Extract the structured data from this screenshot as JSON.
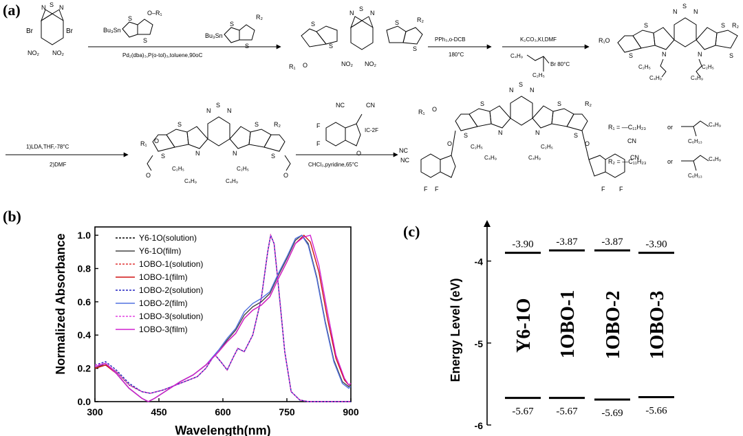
{
  "panels": {
    "a": "(a)",
    "b": "(b)",
    "c": "(c)"
  },
  "scheme": {
    "start": {
      "br_left": "Br",
      "br_right": "Br",
      "no2_left": "NO₂",
      "no2_right": "NO₂"
    },
    "reagent1": {
      "bu3sn": "Bu₃Sn",
      "o_r1": "O–R₁"
    },
    "reagent2": {
      "bu3sn": "Bu₃Sn",
      "r2": "R₂"
    },
    "step1": "Pd₂(dba)₃,P(o-tol)₃,toluene,90oC",
    "step2_top": "PPh₃,o-DCB",
    "step2_bottom": "180°C",
    "step3_top": "K₂CO₃,KI,DMF",
    "step3_alkyl": "C₄H₉",
    "step3_br": "Br 80°C",
    "step3_alkyl2": "C₂H₅",
    "step4_top": "1)LDA,THF,-78°C",
    "step4_bottom": "2)DMF",
    "step5_ic": "IC-2F",
    "step5_bottom": "CHCl₃,pyridine,65°C",
    "atoms": {
      "S": "S",
      "N": "N",
      "O": "O",
      "F": "F",
      "CN": "CN",
      "NC": "NC",
      "R1": "R₁",
      "R2": "R₂",
      "R1O": "R₁O",
      "C2H5": "C₂H₅",
      "C4H9": "C₄H₉",
      "NO2": "NO₂"
    },
    "r1_def": {
      "lhs": "R₁ = —C₁₁H₂₃",
      "or": "or",
      "c4h9": "C₄H₉",
      "c6h13": "C₆H₁₃"
    },
    "r2_def": {
      "lhs": "R₂ = —C₁₁H₂₃",
      "or": "or",
      "c4h9": "C₄H₉",
      "c6h13": "C₆H₁₃"
    }
  },
  "chart_data": [
    {
      "type": "line",
      "xlabel": "Wavelength(nm)",
      "ylabel": "Normalized Absorbance",
      "xlim": [
        300,
        900
      ],
      "ylim": [
        0,
        1.05
      ],
      "xticks": [
        300,
        450,
        600,
        750,
        900
      ],
      "yticks": [
        0.0,
        0.2,
        0.4,
        0.6,
        0.8,
        1.0
      ],
      "legend_position": "top-left",
      "series": [
        {
          "name": "Y6-1O(solution)",
          "color": "#000000",
          "dash": true,
          "x": [
            300,
            325,
            350,
            380,
            410,
            430,
            460,
            500,
            540,
            560,
            575,
            582,
            595,
            610,
            625,
            635,
            650,
            670,
            690,
            705,
            712,
            720,
            730,
            745,
            760,
            780,
            800,
            900
          ],
          "y": [
            0.2,
            0.22,
            0.18,
            0.1,
            0.06,
            0.05,
            0.07,
            0.11,
            0.15,
            0.2,
            0.26,
            0.28,
            0.24,
            0.19,
            0.27,
            0.32,
            0.3,
            0.4,
            0.62,
            0.9,
            1.0,
            0.95,
            0.7,
            0.3,
            0.06,
            0.01,
            0.0,
            0.0
          ]
        },
        {
          "name": "Y6-1O(film)",
          "color": "#444444",
          "dash": false,
          "x": [
            300,
            325,
            350,
            380,
            410,
            425,
            440,
            470,
            500,
            530,
            560,
            590,
            610,
            630,
            650,
            670,
            690,
            710,
            730,
            750,
            770,
            785,
            800,
            820,
            840,
            860,
            880,
            895,
            900
          ],
          "y": [
            0.2,
            0.23,
            0.17,
            0.08,
            0.02,
            0.0,
            0.02,
            0.07,
            0.12,
            0.16,
            0.22,
            0.3,
            0.37,
            0.43,
            0.52,
            0.57,
            0.6,
            0.65,
            0.76,
            0.86,
            0.97,
            1.0,
            0.95,
            0.75,
            0.48,
            0.25,
            0.12,
            0.09,
            0.1
          ]
        },
        {
          "name": "1OBO-1(solution)",
          "color": "#e03030",
          "dash": true,
          "x": [
            300,
            325,
            350,
            380,
            410,
            430,
            460,
            500,
            540,
            560,
            575,
            582,
            595,
            610,
            625,
            635,
            650,
            670,
            690,
            705,
            712,
            720,
            730,
            745,
            760,
            780,
            800,
            900
          ],
          "y": [
            0.21,
            0.23,
            0.18,
            0.1,
            0.06,
            0.05,
            0.07,
            0.11,
            0.15,
            0.2,
            0.26,
            0.28,
            0.24,
            0.19,
            0.27,
            0.32,
            0.3,
            0.4,
            0.62,
            0.9,
            1.0,
            0.95,
            0.7,
            0.3,
            0.06,
            0.01,
            0.0,
            0.0
          ]
        },
        {
          "name": "1OBO-1(film)",
          "color": "#d01010",
          "dash": false,
          "x": [
            300,
            325,
            350,
            380,
            410,
            425,
            440,
            470,
            500,
            530,
            560,
            590,
            610,
            630,
            650,
            670,
            690,
            710,
            730,
            750,
            770,
            790,
            805,
            825,
            845,
            865,
            885,
            895,
            900
          ],
          "y": [
            0.2,
            0.22,
            0.17,
            0.08,
            0.02,
            0.0,
            0.02,
            0.07,
            0.12,
            0.16,
            0.22,
            0.3,
            0.36,
            0.41,
            0.5,
            0.55,
            0.58,
            0.63,
            0.74,
            0.84,
            0.95,
            1.0,
            0.96,
            0.78,
            0.5,
            0.26,
            0.13,
            0.1,
            0.11
          ]
        },
        {
          "name": "1OBO-2(solution)",
          "color": "#2020c0",
          "dash": true,
          "x": [
            300,
            325,
            350,
            380,
            410,
            430,
            460,
            500,
            540,
            560,
            575,
            582,
            595,
            610,
            625,
            635,
            650,
            670,
            690,
            705,
            712,
            720,
            730,
            745,
            760,
            780,
            800,
            900
          ],
          "y": [
            0.22,
            0.24,
            0.19,
            0.11,
            0.06,
            0.05,
            0.07,
            0.11,
            0.15,
            0.2,
            0.26,
            0.28,
            0.24,
            0.19,
            0.27,
            0.32,
            0.3,
            0.4,
            0.62,
            0.9,
            1.0,
            0.95,
            0.7,
            0.3,
            0.06,
            0.01,
            0.0,
            0.0
          ]
        },
        {
          "name": "1OBO-2(film)",
          "color": "#5070e0",
          "dash": false,
          "x": [
            300,
            325,
            350,
            380,
            410,
            425,
            440,
            470,
            500,
            530,
            560,
            590,
            610,
            630,
            650,
            670,
            690,
            710,
            730,
            750,
            770,
            785,
            800,
            820,
            840,
            860,
            880,
            895,
            900
          ],
          "y": [
            0.21,
            0.23,
            0.17,
            0.08,
            0.02,
            0.0,
            0.02,
            0.07,
            0.12,
            0.16,
            0.22,
            0.31,
            0.38,
            0.44,
            0.54,
            0.59,
            0.62,
            0.66,
            0.77,
            0.87,
            0.98,
            1.0,
            0.94,
            0.74,
            0.47,
            0.24,
            0.11,
            0.08,
            0.09
          ]
        },
        {
          "name": "1OBO-3(solution)",
          "color": "#e040e0",
          "dash": true,
          "x": [
            300,
            325,
            350,
            380,
            410,
            430,
            460,
            500,
            540,
            560,
            575,
            582,
            595,
            610,
            625,
            635,
            650,
            670,
            690,
            705,
            712,
            720,
            730,
            745,
            760,
            780,
            800,
            900
          ],
          "y": [
            0.22,
            0.23,
            0.18,
            0.1,
            0.06,
            0.05,
            0.07,
            0.11,
            0.15,
            0.2,
            0.26,
            0.28,
            0.24,
            0.19,
            0.27,
            0.32,
            0.3,
            0.4,
            0.62,
            0.9,
            1.0,
            0.95,
            0.7,
            0.3,
            0.06,
            0.01,
            0.0,
            0.0
          ]
        },
        {
          "name": "1OBO-3(film)",
          "color": "#d020d0",
          "dash": false,
          "x": [
            300,
            325,
            350,
            380,
            410,
            425,
            440,
            470,
            500,
            530,
            560,
            590,
            610,
            630,
            650,
            670,
            690,
            710,
            730,
            750,
            770,
            790,
            805,
            825,
            845,
            865,
            885,
            895,
            900
          ],
          "y": [
            0.21,
            0.23,
            0.17,
            0.08,
            0.02,
            0.0,
            0.02,
            0.07,
            0.12,
            0.16,
            0.22,
            0.3,
            0.36,
            0.41,
            0.5,
            0.55,
            0.58,
            0.63,
            0.74,
            0.84,
            0.95,
            0.99,
            1.0,
            0.82,
            0.54,
            0.28,
            0.14,
            0.1,
            0.11
          ]
        }
      ]
    },
    {
      "type": "bar",
      "ylabel": "Energy Level (eV)",
      "ylim": [
        -6,
        -3.5
      ],
      "yticks": [
        -4,
        -5,
        -6
      ],
      "categories": [
        "Y6-1O",
        "1OBO-1",
        "1OBO-2",
        "1OBO-3"
      ],
      "lumo": [
        -3.9,
        -3.87,
        -3.87,
        -3.9
      ],
      "homo": [
        -5.67,
        -5.67,
        -5.69,
        -5.66
      ],
      "lumo_labels": [
        "-3.90",
        "-3.87",
        "-3.87",
        "-3.90"
      ],
      "homo_labels": [
        "-5.67",
        "-5.67",
        "-5.69",
        "-5.66"
      ],
      "ytick_labels": [
        "-4",
        "-5",
        "-6"
      ]
    }
  ]
}
